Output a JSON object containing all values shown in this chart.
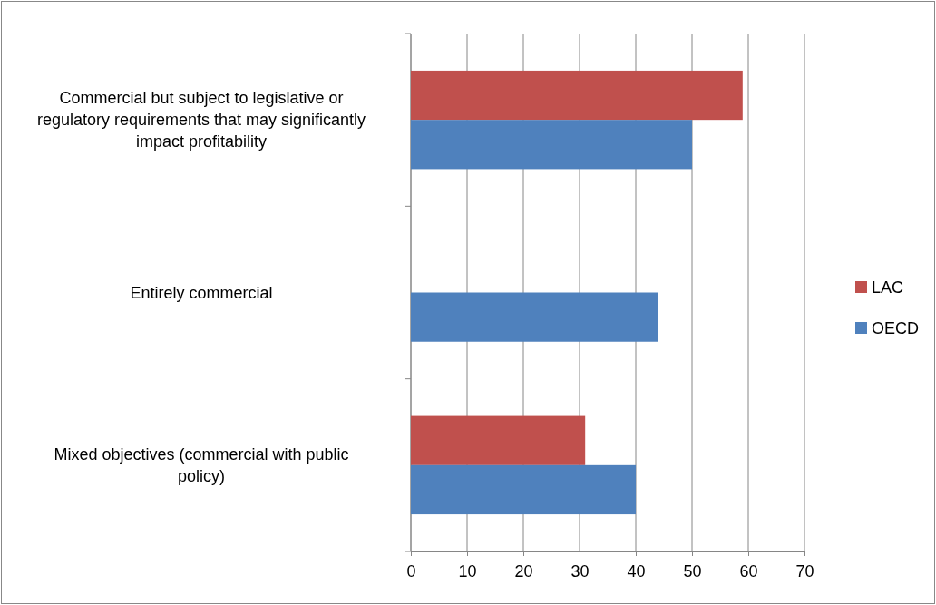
{
  "chart_data": {
    "type": "bar",
    "orientation": "horizontal",
    "categories": [
      "Commercial but subject to legislative or regulatory requirements that may significantly impact profitability",
      "Entirely commercial",
      "Mixed objectives (commercial with public policy)"
    ],
    "series": [
      {
        "name": "LAC",
        "color": "#c0504d",
        "values": [
          59,
          null,
          31
        ]
      },
      {
        "name": "OECD",
        "color": "#4f81bd",
        "values": [
          50,
          44,
          40
        ]
      }
    ],
    "xlim": [
      0,
      70
    ],
    "xticks": [
      0,
      10,
      20,
      30,
      40,
      50,
      60,
      70
    ],
    "grid": "x",
    "legend": "right"
  }
}
